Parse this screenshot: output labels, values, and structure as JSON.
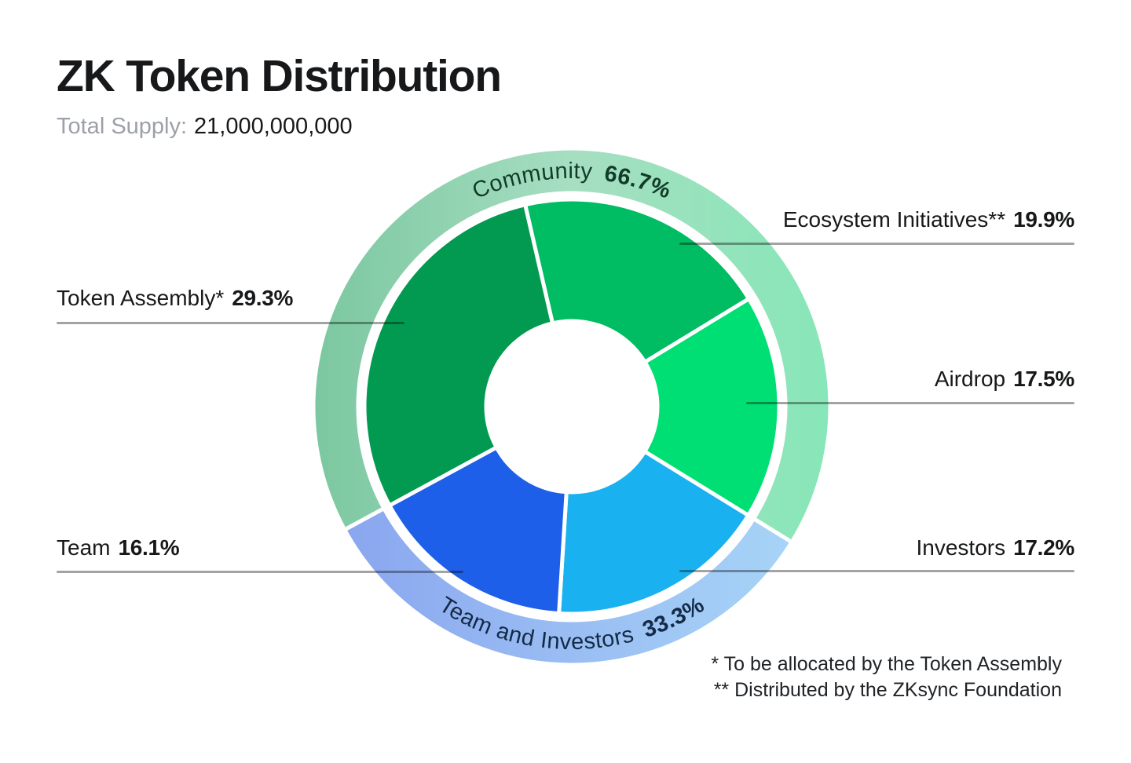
{
  "header": {
    "title": "ZK Token Distribution",
    "total_supply_label": "Total Supply:",
    "total_supply_value": "21,000,000,000"
  },
  "chart_data": {
    "type": "pie",
    "subtype": "donut-with-outer-ring",
    "title": "ZK Token Distribution",
    "total_supply": "21,000,000,000",
    "start_angle_deg": -13,
    "legend_position": "callouts",
    "grid": false,
    "inner_segments": [
      {
        "label": "Ecosystem Initiatives**",
        "value": 19.9,
        "pct": "19.9%",
        "color": "#00BC62"
      },
      {
        "label": "Airdrop",
        "value": 17.5,
        "pct": "17.5%",
        "color": "#00DF74"
      },
      {
        "label": "Investors",
        "value": 17.2,
        "pct": "17.2%",
        "color": "#19B1EF"
      },
      {
        "label": "Team",
        "value": 16.1,
        "pct": "16.1%",
        "color": "#1E5FE9"
      },
      {
        "label": "Token Assembly*",
        "value": 29.3,
        "pct": "29.3%",
        "color": "#029950"
      }
    ],
    "outer_ring": {
      "start_angle_deg": 241.52,
      "groups": [
        {
          "label": "Community",
          "value": 66.7,
          "pct": "66.7%",
          "gradient": [
            "#7BC7A0",
            "#A6DEC1",
            "#87E7B8"
          ],
          "text_color": "#123C28"
        },
        {
          "label": "Team and Investors",
          "value": 33.3,
          "pct": "33.3%",
          "gradient": [
            "#8AA6EF",
            "#99BDF3",
            "#A7D4F7"
          ],
          "text_color": "#142B47"
        }
      ]
    }
  },
  "callouts": [
    {
      "id": "token-assembly",
      "label": "Token Assembly*",
      "pct": "29.3%",
      "side": "left"
    },
    {
      "id": "team",
      "label": "Team",
      "pct": "16.1%",
      "side": "left"
    },
    {
      "id": "ecosystem-initiatives",
      "label": "Ecosystem Initiatives**",
      "pct": "19.9%",
      "side": "right"
    },
    {
      "id": "airdrop",
      "label": "Airdrop",
      "pct": "17.5%",
      "side": "right"
    },
    {
      "id": "investors",
      "label": "Investors",
      "pct": "17.2%",
      "side": "right"
    }
  ],
  "footnotes": [
    "* To be allocated by the Token Assembly",
    "** Distributed by the ZKsync Foundation"
  ],
  "colors": {
    "background": "#FFFFFF",
    "title_text": "#17181A",
    "muted_text": "#9DA1A7",
    "footnote_text": "#202327",
    "leader_line": "rgba(0,0,0,0.36)",
    "segment_gap": "#FFFFFF"
  }
}
